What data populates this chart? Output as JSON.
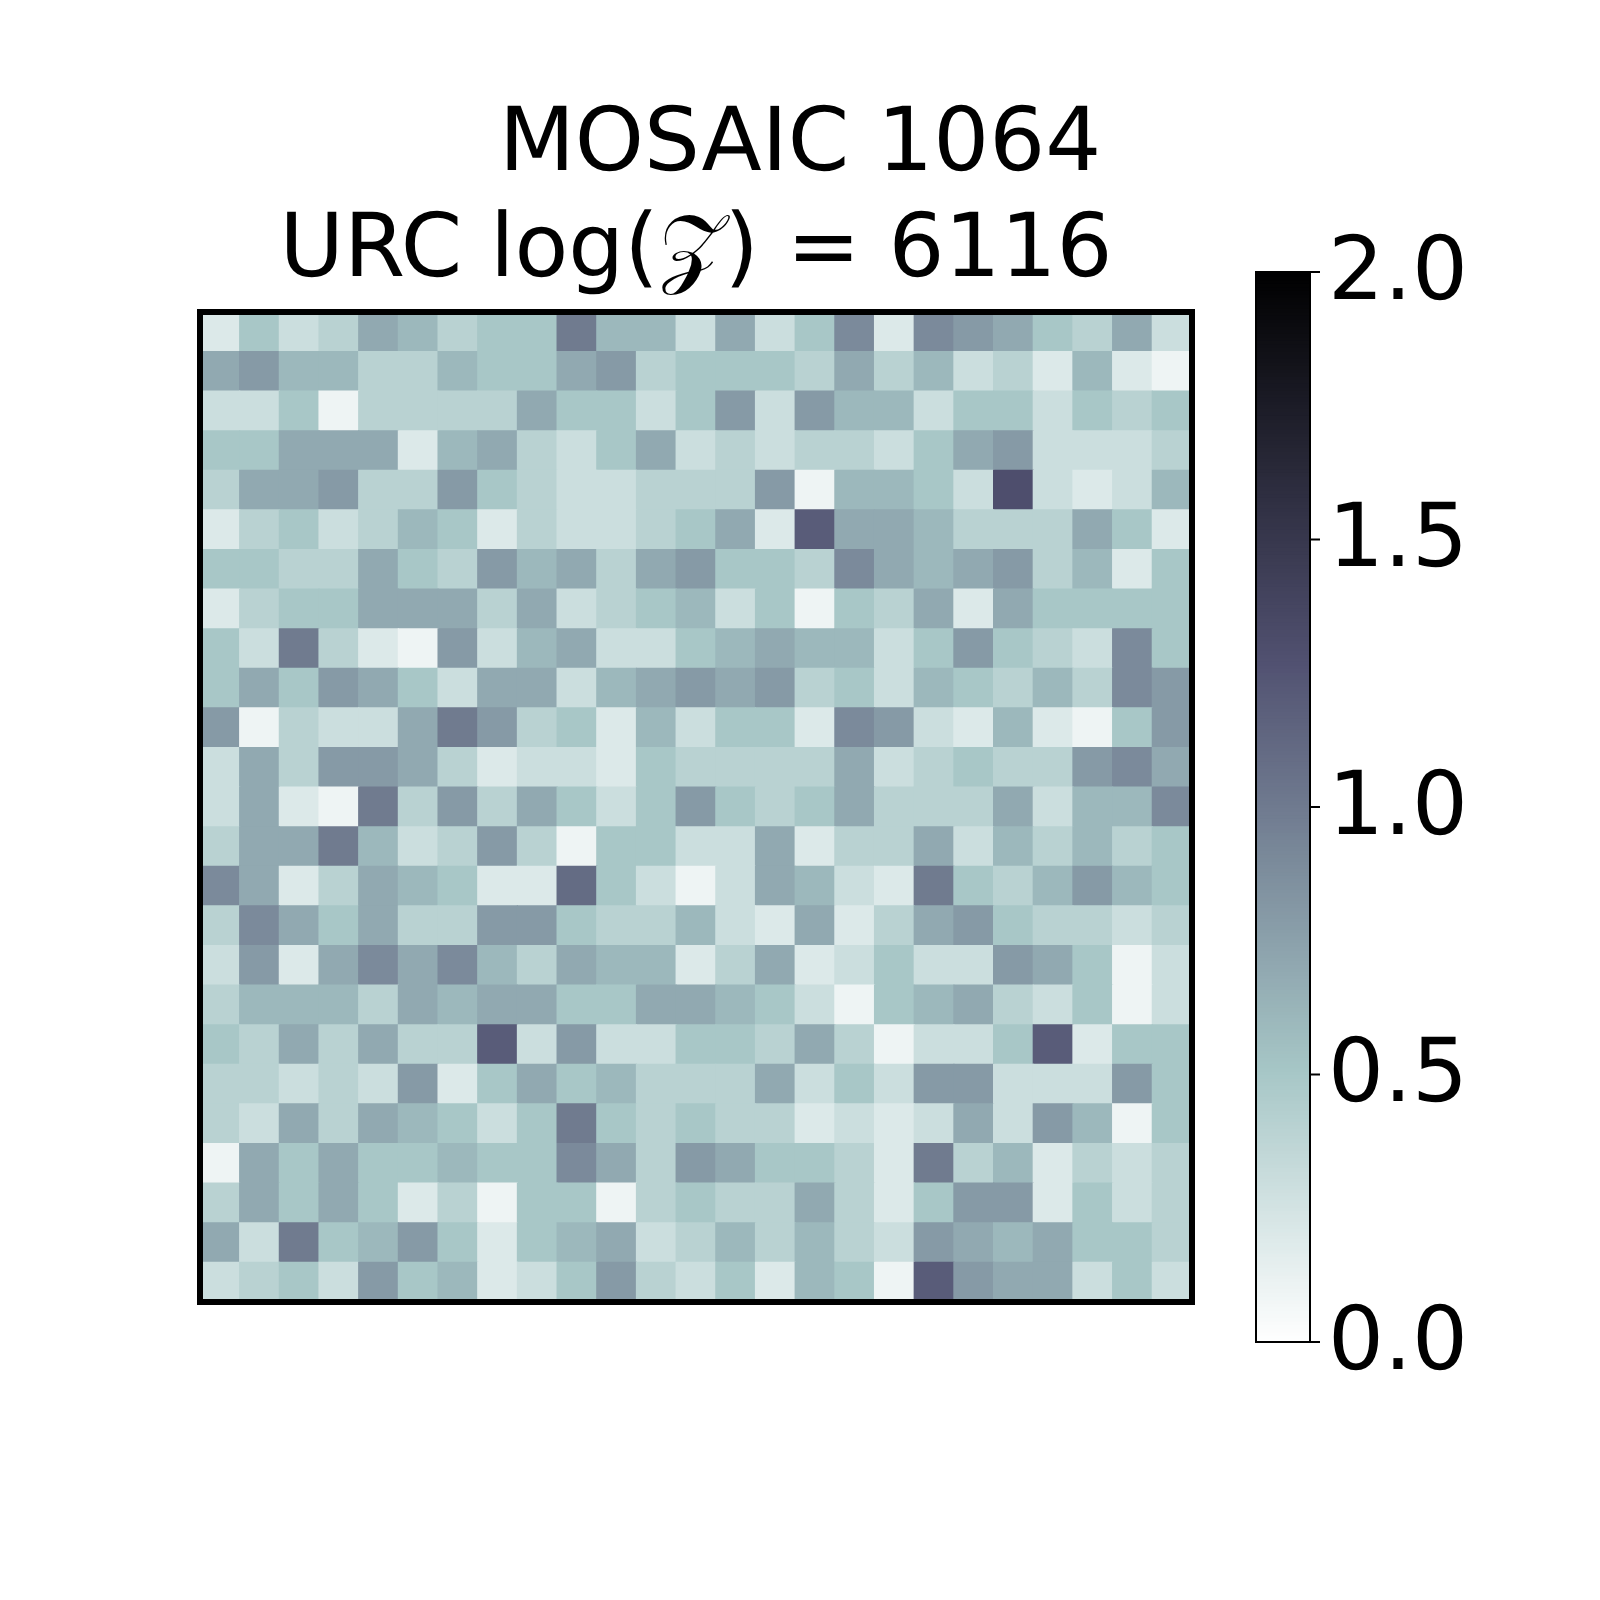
{
  "chart_data": {
    "type": "heatmap",
    "title": "MOSAIC 1064",
    "subtitle": "URC log(𝒵) = 6116",
    "categories": [
      null,
      null,
      null,
      null,
      null,
      null,
      null,
      null,
      null,
      null,
      null,
      null,
      null,
      null,
      null,
      null,
      null,
      null,
      null,
      null,
      null,
      null,
      null,
      null,
      null
    ],
    "y_categories": [
      null,
      null,
      null,
      null,
      null,
      null,
      null,
      null,
      null,
      null,
      null,
      null,
      null,
      null,
      null,
      null,
      null,
      null,
      null,
      null,
      null,
      null,
      null,
      null,
      null
    ],
    "tick_labels": false,
    "clim": [
      0,
      2
    ],
    "cticks": [
      {
        "value": 0,
        "label": "0.0"
      },
      0.5,
      {
        "value": 1,
        "label": "1.0"
      },
      1.5,
      {
        "value": 2,
        "label": "2.0"
      }
    ],
    "cells": [
      [
        0.2,
        0.5,
        0.3,
        0.4,
        0.7,
        0.6,
        0.4,
        0.5,
        0.5,
        1.0,
        0.6,
        0.6,
        0.3,
        0.7,
        0.3,
        0.5,
        0.9,
        0.2,
        0.9,
        0.8,
        0.7,
        0.5,
        0.4,
        0.7,
        0.3
      ],
      [
        0.7,
        0.8,
        0.6,
        0.6,
        0.4,
        0.4,
        0.6,
        0.5,
        0.5,
        0.7,
        0.8,
        0.4,
        0.5,
        0.5,
        0.5,
        0.4,
        0.7,
        0.4,
        0.6,
        0.3,
        0.4,
        0.2,
        0.6,
        0.2,
        0.1
      ],
      [
        0.3,
        0.3,
        0.5,
        0.1,
        0.4,
        0.4,
        0.4,
        0.4,
        0.7,
        0.5,
        0.5,
        0.3,
        0.5,
        0.8,
        0.3,
        0.8,
        0.6,
        0.6,
        0.3,
        0.5,
        0.5,
        0.3,
        0.5,
        0.4,
        0.5
      ],
      [
        0.5,
        0.5,
        0.7,
        0.7,
        0.7,
        0.2,
        0.6,
        0.7,
        0.4,
        0.3,
        0.5,
        0.7,
        0.3,
        0.4,
        0.3,
        0.4,
        0.4,
        0.3,
        0.5,
        0.7,
        0.8,
        0.3,
        0.3,
        0.3,
        0.4
      ],
      [
        0.4,
        0.7,
        0.7,
        0.8,
        0.4,
        0.4,
        0.8,
        0.5,
        0.4,
        0.3,
        0.3,
        0.4,
        0.4,
        0.4,
        0.8,
        0.1,
        0.6,
        0.6,
        0.5,
        0.3,
        1.3,
        0.3,
        0.2,
        0.3,
        0.6
      ],
      [
        0.2,
        0.4,
        0.5,
        0.3,
        0.4,
        0.6,
        0.5,
        0.2,
        0.4,
        0.3,
        0.3,
        0.4,
        0.5,
        0.7,
        0.2,
        1.2,
        0.7,
        0.7,
        0.6,
        0.4,
        0.4,
        0.4,
        0.7,
        0.5,
        0.2
      ],
      [
        0.5,
        0.5,
        0.4,
        0.4,
        0.7,
        0.5,
        0.4,
        0.8,
        0.6,
        0.7,
        0.4,
        0.7,
        0.8,
        0.5,
        0.5,
        0.4,
        0.9,
        0.7,
        0.6,
        0.7,
        0.8,
        0.4,
        0.6,
        0.2,
        0.5
      ],
      [
        0.2,
        0.4,
        0.5,
        0.5,
        0.7,
        0.7,
        0.7,
        0.4,
        0.7,
        0.3,
        0.4,
        0.5,
        0.6,
        0.3,
        0.5,
        0.1,
        0.5,
        0.4,
        0.7,
        0.2,
        0.7,
        0.5,
        0.5,
        0.5,
        0.5
      ],
      [
        0.5,
        0.3,
        1.0,
        0.4,
        0.2,
        0.1,
        0.8,
        0.3,
        0.6,
        0.7,
        0.3,
        0.3,
        0.5,
        0.6,
        0.7,
        0.6,
        0.6,
        0.3,
        0.5,
        0.8,
        0.5,
        0.4,
        0.3,
        0.9,
        0.5
      ],
      [
        0.5,
        0.7,
        0.5,
        0.8,
        0.7,
        0.5,
        0.3,
        0.7,
        0.7,
        0.3,
        0.6,
        0.7,
        0.8,
        0.7,
        0.8,
        0.4,
        0.5,
        0.3,
        0.6,
        0.5,
        0.4,
        0.6,
        0.4,
        0.9,
        0.8
      ],
      [
        0.8,
        0.1,
        0.4,
        0.3,
        0.3,
        0.7,
        1.0,
        0.8,
        0.4,
        0.5,
        0.2,
        0.6,
        0.3,
        0.5,
        0.5,
        0.2,
        0.9,
        0.8,
        0.3,
        0.2,
        0.6,
        0.2,
        0.1,
        0.5,
        0.8
      ],
      [
        0.3,
        0.7,
        0.4,
        0.8,
        0.8,
        0.7,
        0.4,
        0.2,
        0.3,
        0.3,
        0.2,
        0.5,
        0.4,
        0.4,
        0.4,
        0.4,
        0.7,
        0.3,
        0.4,
        0.5,
        0.4,
        0.4,
        0.8,
        0.9,
        0.7
      ],
      [
        0.3,
        0.7,
        0.2,
        0.1,
        1.0,
        0.4,
        0.8,
        0.4,
        0.7,
        0.5,
        0.3,
        0.5,
        0.8,
        0.5,
        0.4,
        0.5,
        0.7,
        0.4,
        0.4,
        0.4,
        0.7,
        0.3,
        0.6,
        0.6,
        0.9
      ],
      [
        0.4,
        0.7,
        0.7,
        1.0,
        0.6,
        0.3,
        0.4,
        0.8,
        0.4,
        0.1,
        0.5,
        0.5,
        0.3,
        0.3,
        0.7,
        0.2,
        0.4,
        0.4,
        0.7,
        0.3,
        0.6,
        0.4,
        0.6,
        0.4,
        0.5
      ],
      [
        0.9,
        0.7,
        0.2,
        0.4,
        0.7,
        0.6,
        0.5,
        0.2,
        0.2,
        1.1,
        0.5,
        0.3,
        0.1,
        0.3,
        0.7,
        0.6,
        0.3,
        0.2,
        1.0,
        0.5,
        0.4,
        0.6,
        0.8,
        0.6,
        0.5
      ],
      [
        0.4,
        0.9,
        0.7,
        0.5,
        0.7,
        0.4,
        0.4,
        0.8,
        0.8,
        0.5,
        0.4,
        0.4,
        0.6,
        0.3,
        0.2,
        0.7,
        0.2,
        0.4,
        0.7,
        0.8,
        0.5,
        0.4,
        0.4,
        0.3,
        0.4
      ],
      [
        0.3,
        0.8,
        0.2,
        0.7,
        0.9,
        0.7,
        0.9,
        0.6,
        0.4,
        0.7,
        0.6,
        0.6,
        0.2,
        0.4,
        0.7,
        0.2,
        0.3,
        0.5,
        0.3,
        0.3,
        0.8,
        0.7,
        0.5,
        0.1,
        0.3
      ],
      [
        0.4,
        0.6,
        0.6,
        0.6,
        0.4,
        0.7,
        0.6,
        0.7,
        0.7,
        0.5,
        0.5,
        0.7,
        0.7,
        0.6,
        0.5,
        0.3,
        0.1,
        0.5,
        0.6,
        0.7,
        0.4,
        0.3,
        0.5,
        0.1,
        0.3
      ],
      [
        0.5,
        0.4,
        0.7,
        0.4,
        0.7,
        0.4,
        0.4,
        1.2,
        0.3,
        0.8,
        0.3,
        0.3,
        0.5,
        0.5,
        0.4,
        0.7,
        0.4,
        0.1,
        0.3,
        0.3,
        0.5,
        1.2,
        0.2,
        0.5,
        0.5
      ],
      [
        0.4,
        0.4,
        0.3,
        0.4,
        0.3,
        0.8,
        0.2,
        0.5,
        0.7,
        0.5,
        0.6,
        0.4,
        0.4,
        0.4,
        0.7,
        0.3,
        0.5,
        0.3,
        0.8,
        0.8,
        0.3,
        0.3,
        0.3,
        0.8,
        0.5
      ],
      [
        0.4,
        0.3,
        0.7,
        0.4,
        0.7,
        0.6,
        0.5,
        0.3,
        0.5,
        1.0,
        0.5,
        0.4,
        0.5,
        0.4,
        0.4,
        0.2,
        0.3,
        0.2,
        0.3,
        0.7,
        0.3,
        0.8,
        0.6,
        0.1,
        0.5
      ],
      [
        0.1,
        0.7,
        0.5,
        0.7,
        0.5,
        0.5,
        0.6,
        0.5,
        0.5,
        0.9,
        0.7,
        0.4,
        0.8,
        0.7,
        0.5,
        0.5,
        0.4,
        0.2,
        1.0,
        0.4,
        0.6,
        0.2,
        0.4,
        0.3,
        0.4
      ],
      [
        0.4,
        0.7,
        0.5,
        0.7,
        0.5,
        0.2,
        0.4,
        0.1,
        0.5,
        0.5,
        0.1,
        0.4,
        0.5,
        0.4,
        0.4,
        0.7,
        0.4,
        0.2,
        0.5,
        0.8,
        0.8,
        0.2,
        0.5,
        0.3,
        0.4
      ],
      [
        0.7,
        0.3,
        1.0,
        0.5,
        0.6,
        0.8,
        0.5,
        0.2,
        0.5,
        0.6,
        0.7,
        0.3,
        0.4,
        0.6,
        0.4,
        0.6,
        0.4,
        0.3,
        0.8,
        0.7,
        0.6,
        0.7,
        0.5,
        0.5,
        0.4
      ],
      [
        0.3,
        0.4,
        0.5,
        0.3,
        0.8,
        0.5,
        0.6,
        0.2,
        0.3,
        0.5,
        0.8,
        0.4,
        0.3,
        0.5,
        0.2,
        0.6,
        0.5,
        0.1,
        1.2,
        0.8,
        0.7,
        0.7,
        0.3,
        0.5,
        0.3
      ]
    ]
  }
}
